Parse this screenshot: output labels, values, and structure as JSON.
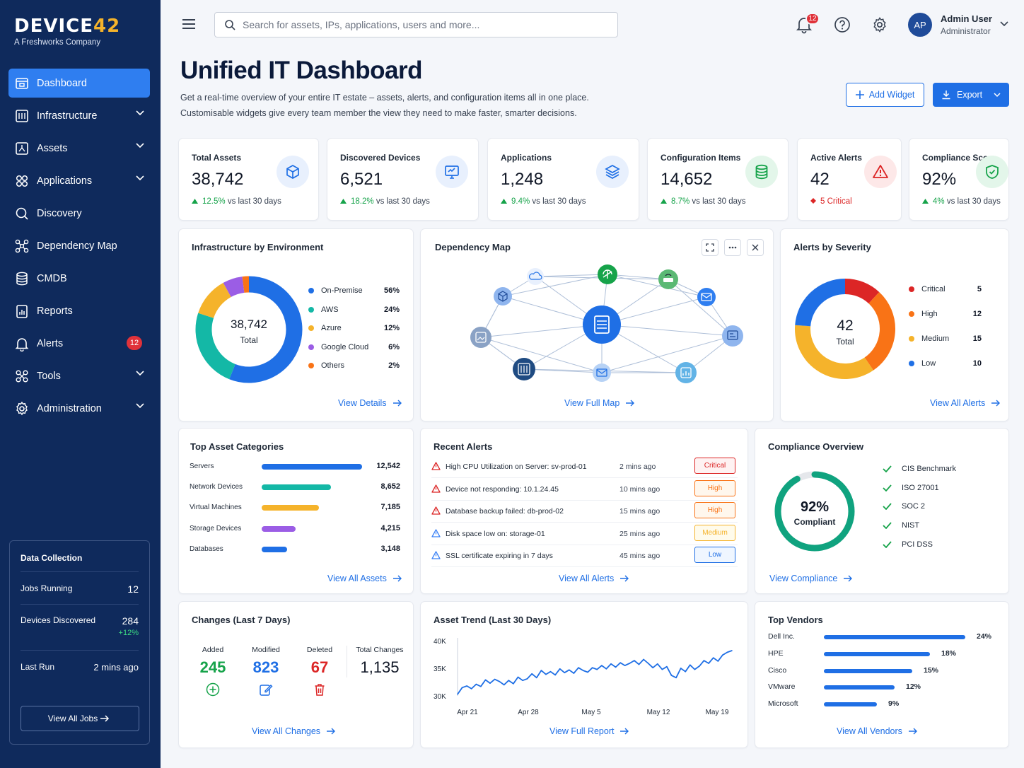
{
  "sidebar": {
    "logo_main": "DEVICE",
    "logo_accent": "42",
    "logo_sub": "A Freshworks Company",
    "items": [
      {
        "label": "Dashboard",
        "icon": "dashboard-icon",
        "active": true
      },
      {
        "label": "Infrastructure",
        "icon": "server-icon",
        "chevron": true
      },
      {
        "label": "Assets",
        "icon": "asset-icon",
        "chevron": true
      },
      {
        "label": "Applications",
        "icon": "grid-icon",
        "chevron": true
      },
      {
        "label": "Discovery",
        "icon": "search-icon"
      },
      {
        "label": "Dependency Map",
        "icon": "network-icon"
      },
      {
        "label": "CMDB",
        "icon": "database-icon"
      },
      {
        "label": "Reports",
        "icon": "report-icon"
      },
      {
        "label": "Alerts",
        "icon": "bell-icon",
        "badge": "12"
      },
      {
        "label": "Tools",
        "icon": "tools-icon",
        "chevron": true
      },
      {
        "label": "Administration",
        "icon": "gear-icon",
        "chevron": true
      }
    ],
    "data_collection": {
      "title": "Data Collection",
      "jobs_label": "Jobs Running",
      "jobs_value": "12",
      "devices_label": "Devices Discovered",
      "devices_value": "284",
      "devices_delta": "+12%",
      "last_label": "Last Run",
      "last_value": "2 mins ago",
      "button": "View All Jobs"
    }
  },
  "topbar": {
    "search_placeholder": "Search for assets, IPs, applications, users and more...",
    "notifications": "12",
    "avatar": "AP",
    "user_name": "Admin User",
    "user_role": "Administrator"
  },
  "header": {
    "title": "Unified IT Dashboard",
    "desc1": "Get a real-time overview of your entire IT estate – assets, alerts, and configuration items all in one place.",
    "desc2": "Customisable widgets give every team member the view they need to make faster, smarter decisions.",
    "add_widget": "Add Widget",
    "export": "Export"
  },
  "stats": [
    {
      "label": "Total Assets",
      "value": "38,742",
      "delta": "12.5%",
      "suffix": "vs last 30 days",
      "icon": "cube-icon",
      "color": "#1f6fe5",
      "bg": "#e8f0fd"
    },
    {
      "label": "Discovered Devices",
      "value": "6,521",
      "delta": "18.2%",
      "suffix": "vs last 30 days",
      "icon": "monitor-icon",
      "color": "#1f6fe5",
      "bg": "#e8f0fd"
    },
    {
      "label": "Applications",
      "value": "1,248",
      "delta": "9.4%",
      "suffix": "vs last 30 days",
      "icon": "layers-icon",
      "color": "#1f6fe5",
      "bg": "#e8f0fd"
    },
    {
      "label": "Configuration Items",
      "value": "14,652",
      "delta": "8.7%",
      "suffix": "vs last 30 days",
      "icon": "database-icon",
      "color": "#16a34a",
      "bg": "#e3f6ea"
    },
    {
      "label": "Active Alerts",
      "value": "42",
      "delta": "5 Critical",
      "suffix": "",
      "icon": "warning-icon",
      "color": "#dc2626",
      "bg": "#fde8e8"
    },
    {
      "label": "Compliance Score",
      "value": "92%",
      "delta": "4%",
      "suffix": "vs last 30 days",
      "icon": "shield-icon",
      "color": "#16a34a",
      "bg": "#e3f6ea"
    }
  ],
  "infra": {
    "title": "Infrastructure by Environment",
    "center_value": "38,742",
    "center_label": "Total",
    "link": "View Details",
    "segments": [
      {
        "name": "On-Premise",
        "pct": "56%",
        "value": 56,
        "color": "#1f6fe5"
      },
      {
        "name": "AWS",
        "pct": "24%",
        "value": 24,
        "color": "#14b8a6"
      },
      {
        "name": "Azure",
        "pct": "12%",
        "value": 12,
        "color": "#f5b32b"
      },
      {
        "name": "Google Cloud",
        "pct": "6%",
        "value": 6,
        "color": "#9b5de5"
      },
      {
        "name": "Others",
        "pct": "2%",
        "value": 2,
        "color": "#f97316"
      }
    ]
  },
  "depmap": {
    "title": "Dependency Map",
    "link": "View Full Map"
  },
  "alerts_sev": {
    "title": "Alerts by Severity",
    "center_value": "42",
    "center_label": "Total",
    "link": "View All Alerts",
    "segments": [
      {
        "name": "Critical",
        "count": "5",
        "value": 5,
        "color": "#dc2626"
      },
      {
        "name": "High",
        "count": "12",
        "value": 12,
        "color": "#f97316"
      },
      {
        "name": "Medium",
        "count": "15",
        "value": 15,
        "color": "#f5b32b"
      },
      {
        "name": "Low",
        "count": "10",
        "value": 10,
        "color": "#1f6fe5"
      }
    ]
  },
  "categories": {
    "title": "Top Asset Categories",
    "link": "View All Assets",
    "rows": [
      {
        "name": "Servers",
        "count": "12,542",
        "value": 12542,
        "color": "#1f6fe5"
      },
      {
        "name": "Network Devices",
        "count": "8,652",
        "value": 8652,
        "color": "#14b8a6"
      },
      {
        "name": "Virtual Machines",
        "count": "7,185",
        "value": 7185,
        "color": "#f5b32b"
      },
      {
        "name": "Storage Devices",
        "count": "4,215",
        "value": 4215,
        "color": "#9b5de5"
      },
      {
        "name": "Databases",
        "count": "3,148",
        "value": 3148,
        "color": "#1f6fe5"
      }
    ]
  },
  "recent_alerts": {
    "title": "Recent Alerts",
    "link": "View All Alerts",
    "rows": [
      {
        "msg": "High CPU Utilization on Server: sv-prod-01",
        "time": "2 mins ago",
        "sev": "Critical",
        "color": "#dc2626",
        "bg": "#fef2f2"
      },
      {
        "msg": "Device not responding: 10.1.24.45",
        "time": "10 mins ago",
        "sev": "High",
        "color": "#f97316",
        "bg": "#fff7ed"
      },
      {
        "msg": "Database backup failed: db-prod-02",
        "time": "15 mins ago",
        "sev": "High",
        "color": "#f97316",
        "bg": "#fff7ed"
      },
      {
        "msg": "Disk space low on: storage-01",
        "time": "25 mins ago",
        "sev": "Medium",
        "color": "#f5b32b",
        "bg": "#fffbeb"
      },
      {
        "msg": "SSL certificate expiring in 7 days",
        "time": "45 mins ago",
        "sev": "Low",
        "color": "#1f6fe5",
        "bg": "#eff6ff"
      }
    ]
  },
  "compliance": {
    "title": "Compliance Overview",
    "value": "92%",
    "label": "Compliant",
    "fraction": 0.92,
    "link": "View Compliance",
    "items": [
      "CIS Benchmark",
      "ISO 27001",
      "SOC 2",
      "NIST",
      "PCI DSS"
    ]
  },
  "changes": {
    "title": "Changes (Last 7 Days)",
    "added_label": "Added",
    "added": "245",
    "modified_label": "Modified",
    "modified": "823",
    "deleted_label": "Deleted",
    "deleted": "67",
    "total_label": "Total Changes",
    "total": "1,135",
    "link": "View All Changes"
  },
  "trend": {
    "title": "Asset Trend (Last 30 Days)",
    "link": "View Full Report"
  },
  "chart_data": {
    "type": "line",
    "title": "Asset Trend (Last 30 Days)",
    "yticks": [
      "40K",
      "35K",
      "30K"
    ],
    "xticks": [
      "Apr 21",
      "Apr 28",
      "May 5",
      "May 12",
      "May 19"
    ],
    "ylim": [
      30000,
      40000
    ],
    "x": [
      0,
      1,
      2,
      3,
      4,
      5,
      6,
      7,
      8,
      9,
      10,
      11,
      12,
      13,
      14,
      15,
      16,
      17,
      18,
      19,
      20,
      21,
      22,
      23,
      24,
      25,
      26,
      27,
      28,
      29,
      30,
      31,
      32,
      33,
      34,
      35,
      36,
      37,
      38,
      39,
      40,
      41,
      42,
      43,
      44,
      45,
      46,
      47,
      48,
      49,
      50,
      51,
      52,
      53,
      54,
      55,
      56,
      57,
      58,
      59
    ],
    "values": [
      30300,
      31500,
      31800,
      31300,
      32100,
      31700,
      32900,
      32300,
      33000,
      32600,
      32000,
      32800,
      32200,
      33400,
      32800,
      33100,
      34000,
      33300,
      34600,
      33900,
      34400,
      33800,
      34900,
      34200,
      34700,
      34100,
      35100,
      34600,
      34300,
      35100,
      34800,
      35500,
      34900,
      35800,
      35200,
      36000,
      35500,
      35900,
      36400,
      35700,
      36600,
      35900,
      35100,
      35800,
      34800,
      35300,
      33700,
      33300,
      35000,
      34400,
      35600,
      34800,
      35400,
      36400,
      35900,
      36900,
      36300,
      37400,
      37900,
      38200
    ],
    "color": "#1f6fe5"
  },
  "vendors": {
    "title": "Top Vendors",
    "link": "View All Vendors",
    "rows": [
      {
        "name": "Dell Inc.",
        "pct": "24%",
        "value": 24
      },
      {
        "name": "HPE",
        "pct": "18%",
        "value": 18
      },
      {
        "name": "Cisco",
        "pct": "15%",
        "value": 15
      },
      {
        "name": "VMware",
        "pct": "12%",
        "value": 12
      },
      {
        "name": "Microsoft",
        "pct": "9%",
        "value": 9
      }
    ]
  }
}
